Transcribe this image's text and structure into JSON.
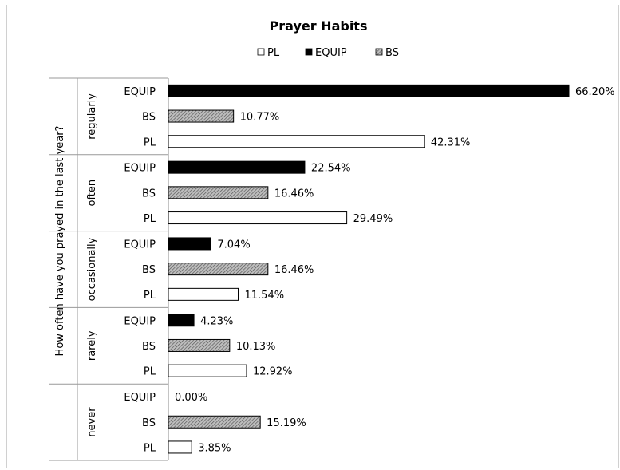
{
  "chart_data": {
    "type": "bar",
    "orientation": "horizontal",
    "title": "Prayer Habits",
    "ylabel": "How often have you prayed in the last year?",
    "xlabel": "",
    "xlim": [
      0,
      66.2
    ],
    "grid": false,
    "legend_position": "top",
    "legend": [
      "PL",
      "EQUIP",
      "BS"
    ],
    "groups": [
      "regularly",
      "often",
      "occasionally",
      "rarely",
      "never"
    ],
    "subcategories": [
      "EQUIP",
      "BS",
      "PL"
    ],
    "series": [
      {
        "name": "EQUIP",
        "values": [
          66.2,
          22.54,
          7.04,
          4.23,
          0.0
        ],
        "labels": [
          "66.20%",
          "22.54%",
          "7.04%",
          "4.23%",
          "0.00%"
        ],
        "fill": "#000000"
      },
      {
        "name": "BS",
        "values": [
          10.77,
          16.46,
          16.46,
          10.13,
          15.19
        ],
        "labels": [
          "10.77%",
          "16.46%",
          "16.46%",
          "10.13%",
          "15.19%"
        ],
        "fill": "hatched-gray"
      },
      {
        "name": "PL",
        "values": [
          42.31,
          29.49,
          11.54,
          12.92,
          3.85
        ],
        "labels": [
          "42.31%",
          "29.49%",
          "11.54%",
          "12.92%",
          "3.85%"
        ],
        "fill": "#ffffff"
      }
    ]
  }
}
